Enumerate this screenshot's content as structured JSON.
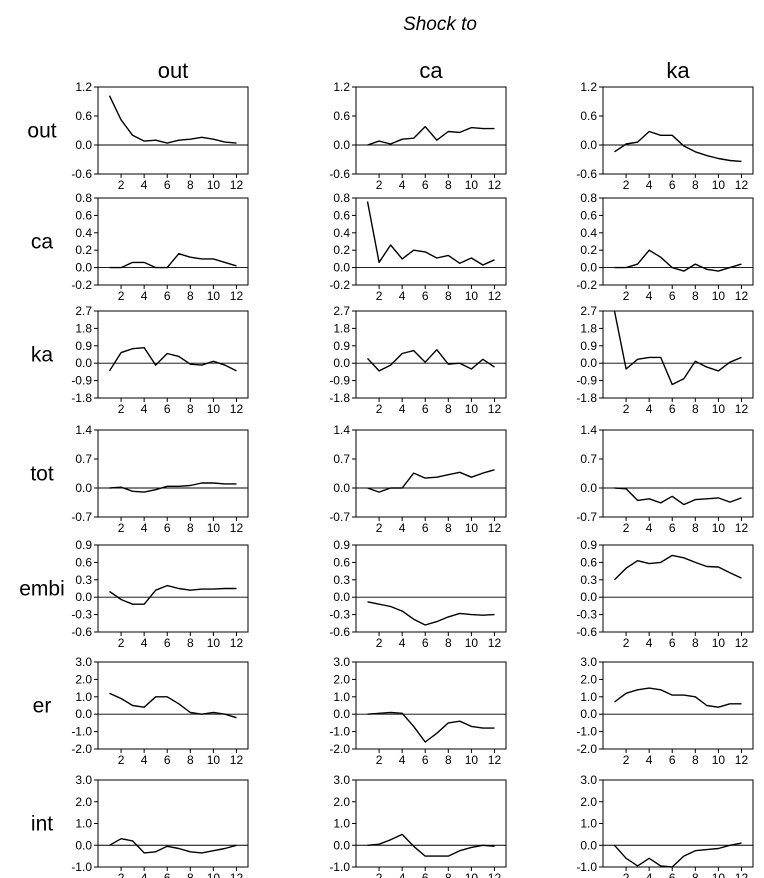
{
  "header": {
    "title": "Shock to"
  },
  "columns": [
    "out",
    "ca",
    "ka"
  ],
  "rows": [
    {
      "name": "out",
      "yticks": [
        "1.2",
        "0.6",
        "0.0",
        "-0.6"
      ],
      "ylim": [
        -0.6,
        1.2
      ]
    },
    {
      "name": "ca",
      "yticks": [
        "0.8",
        "0.6",
        "0.4",
        "0.2",
        "0.0",
        "-0.2"
      ],
      "ylim": [
        -0.2,
        0.8
      ]
    },
    {
      "name": "ka",
      "yticks": [
        "2.7",
        "1.8",
        "0.9",
        "0.0",
        "-0.9",
        "-1.8"
      ],
      "ylim": [
        -1.8,
        2.7
      ]
    },
    {
      "name": "tot",
      "yticks": [
        "1.4",
        "0.7",
        "0.0",
        "-0.7"
      ],
      "ylim": [
        -0.7,
        1.4
      ]
    },
    {
      "name": "embi",
      "yticks": [
        "0.9",
        "0.6",
        "0.3",
        "0.0",
        "-0.3",
        "-0.6"
      ],
      "ylim": [
        -0.6,
        0.9
      ]
    },
    {
      "name": "er",
      "yticks": [
        "3.0",
        "2.0",
        "1.0",
        "0.0",
        "-1.0",
        "-2.0"
      ],
      "ylim": [
        -2.0,
        3.0
      ]
    },
    {
      "name": "int",
      "yticks": [
        "3.0",
        "2.0",
        "1.0",
        "0.0",
        "-1.0"
      ],
      "ylim": [
        -1.0,
        3.0
      ]
    }
  ],
  "xticks": [
    "2",
    "4",
    "6",
    "8",
    "10",
    "12"
  ],
  "chart_data": {
    "type": "line",
    "title": "Shock to",
    "x": [
      1,
      2,
      3,
      4,
      5,
      6,
      7,
      8,
      9,
      10,
      11,
      12
    ],
    "xlim": [
      0,
      13
    ],
    "grid": false,
    "panels": [
      {
        "row": "out",
        "column": "out",
        "values": [
          1.02,
          0.52,
          0.2,
          0.08,
          0.1,
          0.04,
          0.1,
          0.12,
          0.16,
          0.12,
          0.06,
          0.04
        ]
      },
      {
        "row": "out",
        "column": "ca",
        "values": [
          0.0,
          0.08,
          0.02,
          0.12,
          0.14,
          0.38,
          0.1,
          0.28,
          0.26,
          0.36,
          0.34,
          0.34
        ]
      },
      {
        "row": "out",
        "column": "ka",
        "values": [
          -0.14,
          0.02,
          0.06,
          0.28,
          0.2,
          0.2,
          -0.02,
          -0.14,
          -0.22,
          -0.28,
          -0.32,
          -0.34
        ]
      },
      {
        "row": "ca",
        "column": "out",
        "values": [
          0.0,
          0.0,
          0.06,
          0.06,
          0.0,
          0.0,
          0.16,
          0.12,
          0.1,
          0.1,
          0.06,
          0.02
        ]
      },
      {
        "row": "ca",
        "column": "ca",
        "values": [
          0.76,
          0.06,
          0.26,
          0.1,
          0.2,
          0.18,
          0.11,
          0.14,
          0.05,
          0.11,
          0.03,
          0.09
        ]
      },
      {
        "row": "ca",
        "column": "ka",
        "values": [
          0.0,
          0.0,
          0.04,
          0.2,
          0.12,
          0.0,
          -0.04,
          0.04,
          -0.02,
          -0.04,
          0.0,
          0.04
        ]
      },
      {
        "row": "ka",
        "column": "out",
        "values": [
          -0.4,
          0.55,
          0.75,
          0.8,
          -0.1,
          0.5,
          0.35,
          -0.05,
          -0.1,
          0.1,
          -0.1,
          -0.4
        ]
      },
      {
        "row": "ka",
        "column": "ca",
        "values": [
          0.25,
          -0.4,
          -0.1,
          0.5,
          0.65,
          0.05,
          0.7,
          -0.05,
          0.0,
          -0.3,
          0.2,
          -0.2
        ]
      },
      {
        "row": "ka",
        "column": "ka",
        "values": [
          2.7,
          -0.3,
          0.2,
          0.3,
          0.3,
          -1.1,
          -0.8,
          0.1,
          -0.2,
          -0.4,
          0.05,
          0.3
        ]
      },
      {
        "row": "tot",
        "column": "out",
        "values": [
          0.0,
          0.02,
          -0.08,
          -0.1,
          -0.04,
          0.04,
          0.04,
          0.06,
          0.12,
          0.12,
          0.1,
          0.1
        ]
      },
      {
        "row": "tot",
        "column": "ca",
        "values": [
          0.0,
          -0.1,
          0.0,
          0.0,
          0.36,
          0.24,
          0.26,
          0.32,
          0.38,
          0.26,
          0.36,
          0.44
        ]
      },
      {
        "row": "tot",
        "column": "ka",
        "values": [
          0.0,
          -0.02,
          -0.3,
          -0.26,
          -0.36,
          -0.2,
          -0.4,
          -0.28,
          -0.26,
          -0.24,
          -0.34,
          -0.24
        ]
      },
      {
        "row": "embi",
        "column": "out",
        "values": [
          0.1,
          -0.04,
          -0.12,
          -0.12,
          0.12,
          0.2,
          0.15,
          0.12,
          0.14,
          0.14,
          0.15,
          0.15
        ]
      },
      {
        "row": "embi",
        "column": "ca",
        "values": [
          -0.08,
          -0.12,
          -0.16,
          -0.24,
          -0.38,
          -0.48,
          -0.42,
          -0.34,
          -0.28,
          -0.3,
          -0.31,
          -0.3
        ]
      },
      {
        "row": "embi",
        "column": "ka",
        "values": [
          0.3,
          0.5,
          0.63,
          0.58,
          0.6,
          0.72,
          0.68,
          0.6,
          0.53,
          0.52,
          0.42,
          0.33
        ]
      },
      {
        "row": "er",
        "column": "out",
        "values": [
          1.2,
          0.9,
          0.5,
          0.4,
          1.0,
          1.0,
          0.6,
          0.1,
          0.0,
          0.1,
          0.0,
          -0.2
        ]
      },
      {
        "row": "er",
        "column": "ca",
        "values": [
          0.0,
          0.05,
          0.1,
          0.05,
          -0.7,
          -1.6,
          -1.1,
          -0.5,
          -0.4,
          -0.7,
          -0.8,
          -0.8
        ]
      },
      {
        "row": "er",
        "column": "ka",
        "values": [
          0.7,
          1.2,
          1.4,
          1.5,
          1.4,
          1.1,
          1.1,
          1.0,
          0.5,
          0.4,
          0.6,
          0.6
        ]
      },
      {
        "row": "int",
        "column": "out",
        "values": [
          0.0,
          0.3,
          0.2,
          -0.35,
          -0.3,
          -0.05,
          -0.15,
          -0.3,
          -0.35,
          -0.25,
          -0.15,
          0.0
        ]
      },
      {
        "row": "int",
        "column": "ca",
        "values": [
          0.0,
          0.05,
          0.25,
          0.5,
          -0.05,
          -0.5,
          -0.5,
          -0.5,
          -0.25,
          -0.1,
          0.0,
          -0.05
        ]
      },
      {
        "row": "int",
        "column": "ka",
        "values": [
          0.0,
          -0.6,
          -0.95,
          -0.6,
          -0.95,
          -1.0,
          -0.5,
          -0.25,
          -0.2,
          -0.15,
          0.0,
          0.1
        ]
      }
    ]
  }
}
